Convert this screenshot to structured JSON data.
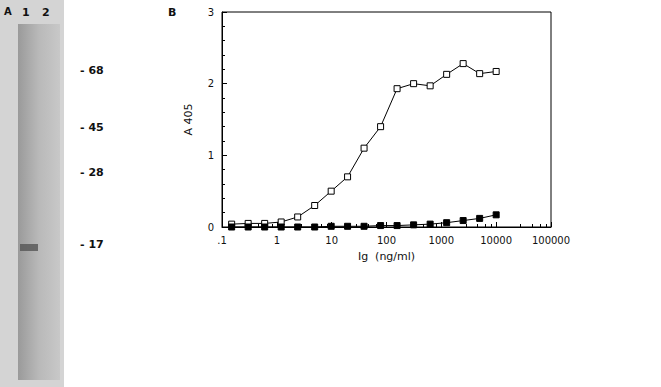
{
  "chart_data": {
    "type": "line",
    "title": "B",
    "x_label": "Ig  (ng/ml)",
    "y_label": "A 405",
    "x": [
      0.15,
      0.3,
      0.6,
      1.2,
      2.4,
      4.9,
      9.8,
      19.5,
      39,
      78,
      156,
      312,
      625,
      1250,
      2500,
      5000,
      10000
    ],
    "series": [
      {
        "color": "#000000",
        "marker": "square_open",
        "line_style": "solid",
        "values": [
          0.04,
          0.05,
          0.05,
          0.07,
          0.14,
          0.3,
          0.5,
          0.7,
          1.1,
          1.4,
          1.93,
          2.0,
          1.97,
          2.13,
          2.28,
          2.14,
          2.17
        ]
      },
      {
        "color": "#000000",
        "marker": "square_filled",
        "line_style": "solid",
        "values": [
          0,
          0,
          0,
          0,
          0,
          0,
          0.01,
          0.01,
          0.01,
          0.02,
          0.02,
          0.03,
          0.04,
          0.06,
          0.09,
          0.12,
          0.17
        ]
      }
    ],
    "log": "x",
    "xlim": [
      0.1,
      100000
    ],
    "xticks": [
      {
        "value": 0.1,
        "label": ".1"
      },
      1,
      10,
      100,
      1000,
      10000,
      100000
    ],
    "ylim": [
      0,
      3
    ],
    "yticks": [
      0,
      1,
      2,
      3
    ],
    "grid": false
  },
  "gel": {
    "panel": "A",
    "lanes": [
      "1",
      "2"
    ],
    "markers": [
      68,
      45,
      28,
      17
    ]
  }
}
